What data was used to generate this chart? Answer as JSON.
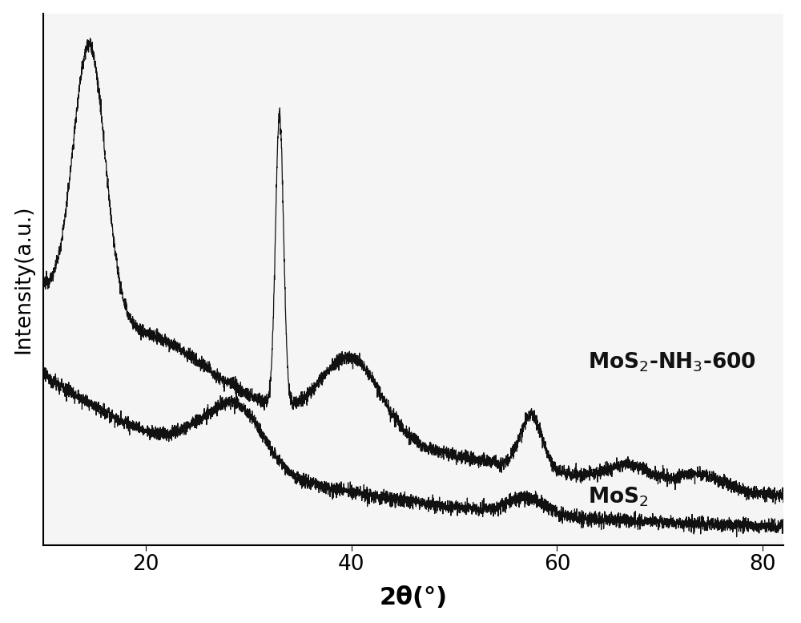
{
  "xlabel": "2θ(°)",
  "ylabel": "Intensity(a.u.)",
  "xlim": [
    10,
    82
  ],
  "x_ticks": [
    20,
    40,
    60,
    80
  ],
  "background_color": "#ffffff",
  "plot_bg_color": "#f5f5f5",
  "label1": "MoS$_2$-NH$_3$-600",
  "label2": "MoS$_2$",
  "noise_level": 0.008,
  "line_color": "#111111",
  "line_width": 0.9,
  "xlabel_fontsize": 22,
  "ylabel_fontsize": 19,
  "tick_fontsize": 19,
  "label_fontsize": 19
}
